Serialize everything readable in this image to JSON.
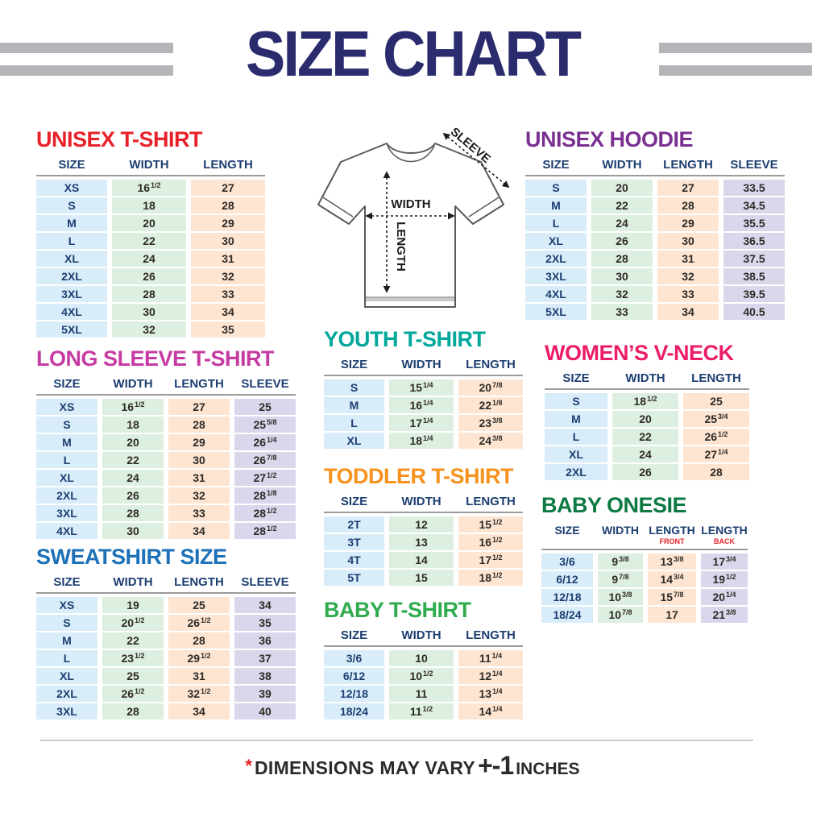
{
  "title": "SIZE CHART",
  "diagram": {
    "width_label": "WIDTH",
    "length_label": "LENGTH",
    "sleeve_label": "SLEEVE"
  },
  "colors": {
    "title_navy": "#2b2c6e",
    "header_navy": "#1c3e71",
    "cell_size": "#d9ecf9",
    "cell_width": "#ddefe0",
    "cell_length": "#fde5d2",
    "cell_sleeve": "#d9d7ec",
    "stripe_gray": "#b5b4b8"
  },
  "tables": [
    {
      "id": "unisex-tshirt",
      "title": "UNISEX T-SHIRT",
      "color": "#e7222a",
      "columns": [
        "SIZE",
        "WIDTH",
        "LENGTH"
      ],
      "rows": [
        [
          "XS",
          "16|1/2",
          "27"
        ],
        [
          "S",
          "18",
          "28"
        ],
        [
          "M",
          "20",
          "29"
        ],
        [
          "L",
          "22",
          "30"
        ],
        [
          "XL",
          "24",
          "31"
        ],
        [
          "2XL",
          "26",
          "32"
        ],
        [
          "3XL",
          "28",
          "33"
        ],
        [
          "4XL",
          "30",
          "34"
        ],
        [
          "5XL",
          "32",
          "35"
        ]
      ]
    },
    {
      "id": "unisex-hoodie",
      "title": "UNISEX HOODIE",
      "color": "#7a3091",
      "columns": [
        "SIZE",
        "WIDTH",
        "LENGTH",
        "SLEEVE"
      ],
      "rows": [
        [
          "S",
          "20",
          "27",
          "33.5"
        ],
        [
          "M",
          "22",
          "28",
          "34.5"
        ],
        [
          "L",
          "24",
          "29",
          "35.5"
        ],
        [
          "XL",
          "26",
          "30",
          "36.5"
        ],
        [
          "2XL",
          "28",
          "31",
          "37.5"
        ],
        [
          "3XL",
          "30",
          "32",
          "38.5"
        ],
        [
          "4XL",
          "32",
          "33",
          "39.5"
        ],
        [
          "5XL",
          "33",
          "34",
          "40.5"
        ]
      ]
    },
    {
      "id": "long-sleeve",
      "title": "LONG SLEEVE T-SHIRT",
      "color": "#c63ba2",
      "columns": [
        "SIZE",
        "WIDTH",
        "LENGTH",
        "SLEEVE"
      ],
      "rows": [
        [
          "XS",
          "16|1/2",
          "27",
          "25"
        ],
        [
          "S",
          "18",
          "28",
          "25|5/8"
        ],
        [
          "M",
          "20",
          "29",
          "26|1/4"
        ],
        [
          "L",
          "22",
          "30",
          "26|7/8"
        ],
        [
          "XL",
          "24",
          "31",
          "27|1/2"
        ],
        [
          "2XL",
          "26",
          "32",
          "28|1/8"
        ],
        [
          "3XL",
          "28",
          "33",
          "28|1/2"
        ],
        [
          "4XL",
          "30",
          "34",
          "28|1/2"
        ]
      ]
    },
    {
      "id": "youth",
      "title": "YOUTH T-SHIRT",
      "color": "#00a79b",
      "columns": [
        "SIZE",
        "WIDTH",
        "LENGTH"
      ],
      "rows": [
        [
          "S",
          "15|1/4",
          "20|7/8"
        ],
        [
          "M",
          "16|1/4",
          "22|1/8"
        ],
        [
          "L",
          "17|1/4",
          "23|3/8"
        ],
        [
          "XL",
          "18|1/4",
          "24|3/8"
        ]
      ]
    },
    {
      "id": "womens",
      "title": "WOMEN’S V-NECK",
      "color": "#ec1d68",
      "columns": [
        "SIZE",
        "WIDTH",
        "LENGTH"
      ],
      "rows": [
        [
          "S",
          "18|1/2",
          "25"
        ],
        [
          "M",
          "20",
          "25|3/4"
        ],
        [
          "L",
          "22",
          "26|1/2"
        ],
        [
          "XL",
          "24",
          "27|1/4"
        ],
        [
          "2XL",
          "26",
          "28"
        ]
      ]
    },
    {
      "id": "toddler",
      "title": "TODDLER T-SHIRT",
      "color": "#f6921e",
      "columns": [
        "SIZE",
        "WIDTH",
        "LENGTH"
      ],
      "rows": [
        [
          "2T",
          "12",
          "15|1/2"
        ],
        [
          "3T",
          "13",
          "16|1/2"
        ],
        [
          "4T",
          "14",
          "17|1/2"
        ],
        [
          "5T",
          "15",
          "18|1/2"
        ]
      ]
    },
    {
      "id": "sweatshirt",
      "title": "SWEATSHIRT SIZE",
      "color": "#1d71b8",
      "columns": [
        "SIZE",
        "WIDTH",
        "LENGTH",
        "SLEEVE"
      ],
      "rows": [
        [
          "XS",
          "19",
          "25",
          "34"
        ],
        [
          "S",
          "20|1/2",
          "26|1/2",
          "35"
        ],
        [
          "M",
          "22",
          "28",
          "36"
        ],
        [
          "L",
          "23|1/2",
          "29|1/2",
          "37"
        ],
        [
          "XL",
          "25",
          "31",
          "38"
        ],
        [
          "2XL",
          "26|1/2",
          "32|1/2",
          "39"
        ],
        [
          "3XL",
          "28",
          "34",
          "40"
        ]
      ]
    },
    {
      "id": "baby-tshirt",
      "title": "BABY T-SHIRT",
      "color": "#2fac4e",
      "columns": [
        "SIZE",
        "WIDTH",
        "LENGTH"
      ],
      "rows": [
        [
          "3/6",
          "10",
          "11|1/4"
        ],
        [
          "6/12",
          "10|1/2",
          "12|1/4"
        ],
        [
          "12/18",
          "11",
          "13|1/4"
        ],
        [
          "18/24",
          "11|1/2",
          "14|1/4"
        ]
      ]
    },
    {
      "id": "baby-onesie",
      "title": "BABY ONESIE",
      "color": "#0c7a42",
      "columns": [
        "SIZE",
        "WIDTH",
        "LENGTH|FRONT",
        "LENGTH|BACK"
      ],
      "rows": [
        [
          "3/6",
          "9|3/8",
          "13|3/8",
          "17|3/4"
        ],
        [
          "6/12",
          "9|7/8",
          "14|3/4",
          "19|1/2"
        ],
        [
          "12/18",
          "10|3/8",
          "15|7/8",
          "20|1/4"
        ],
        [
          "18/24",
          "10|7/8",
          "17",
          "21|3/8"
        ]
      ]
    }
  ],
  "footnote": {
    "asterisk": "*",
    "text": "DIMENSIONS MAY VARY",
    "variance": "+-1",
    "unit": "INCHES"
  }
}
